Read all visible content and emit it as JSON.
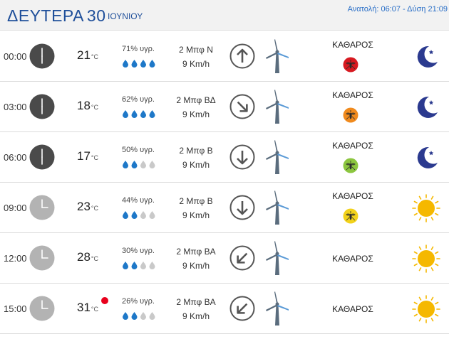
{
  "header": {
    "day": "ΔΕΥΤΕΡΑ",
    "date": "30",
    "month": "ΙΟΥΝΙΟΥ",
    "sun_info": "Ανατολή: 06:07 - Δύση 21:09"
  },
  "units": {
    "temp": "°C"
  },
  "rows": [
    {
      "time": "00:00",
      "temp": "21",
      "humidity": "71% υγρ.",
      "drops_filled": 4,
      "wind_bf": "2 Μπφ Ν",
      "wind_kmh": "9 Km/h",
      "wind_dir": "up-arrow-icon",
      "sky": "ΚΑΘΑΡΟΣ",
      "mosquito_color": "#d71920",
      "weather_icon": "moon-icon",
      "clock": "dark",
      "alert": false
    },
    {
      "time": "03:00",
      "temp": "18",
      "humidity": "62% υγρ.",
      "drops_filled": 4,
      "wind_bf": "2 Μπφ ΒΔ",
      "wind_kmh": "9 Km/h",
      "wind_dir": "down-right-arrow-icon",
      "sky": "ΚΑΘΑΡΟΣ",
      "mosquito_color": "#f08a1d",
      "weather_icon": "moon-icon",
      "clock": "dark",
      "alert": false
    },
    {
      "time": "06:00",
      "temp": "17",
      "humidity": "50% υγρ.",
      "drops_filled": 2,
      "wind_bf": "2 Μπφ Β",
      "wind_kmh": "9 Km/h",
      "wind_dir": "down-arrow-icon",
      "sky": "ΚΑΘΑΡΟΣ",
      "mosquito_color": "#8cc63f",
      "weather_icon": "moon-icon",
      "clock": "dark",
      "alert": false
    },
    {
      "time": "09:00",
      "temp": "23",
      "humidity": "44% υγρ.",
      "drops_filled": 2,
      "wind_bf": "2 Μπφ Β",
      "wind_kmh": "9 Km/h",
      "wind_dir": "down-arrow-icon",
      "sky": "ΚΑΘΑΡΟΣ",
      "mosquito_color": "#f2d21b",
      "weather_icon": "sun-icon",
      "clock": "light",
      "alert": false
    },
    {
      "time": "12:00",
      "temp": "28",
      "humidity": "30% υγρ.",
      "drops_filled": 2,
      "wind_bf": "2 Μπφ ΒΑ",
      "wind_kmh": "9 Km/h",
      "wind_dir": "down-left-arrow-icon",
      "sky": "ΚΑΘΑΡΟΣ",
      "mosquito_color": null,
      "weather_icon": "sun-icon",
      "clock": "light",
      "alert": false
    },
    {
      "time": "15:00",
      "temp": "31",
      "humidity": "26% υγρ.",
      "drops_filled": 2,
      "wind_bf": "2 Μπφ ΒΑ",
      "wind_kmh": "9 Km/h",
      "wind_dir": "down-left-arrow-icon",
      "sky": "ΚΑΘΑΡΟΣ",
      "mosquito_color": null,
      "weather_icon": "sun-icon",
      "clock": "light",
      "alert": true
    }
  ],
  "colors": {
    "header_text": "#1f4f9a",
    "sun_text": "#2a6fc7",
    "drop_filled": "#1e78c8",
    "drop_empty": "#c9c9c9",
    "clock_dark": "#4a4a4a",
    "clock_light": "#b3b3b3",
    "moon": "#2b3a8f",
    "sun": "#f5b800",
    "turbine": "#5a6c7d",
    "alert": "#e8001c"
  }
}
